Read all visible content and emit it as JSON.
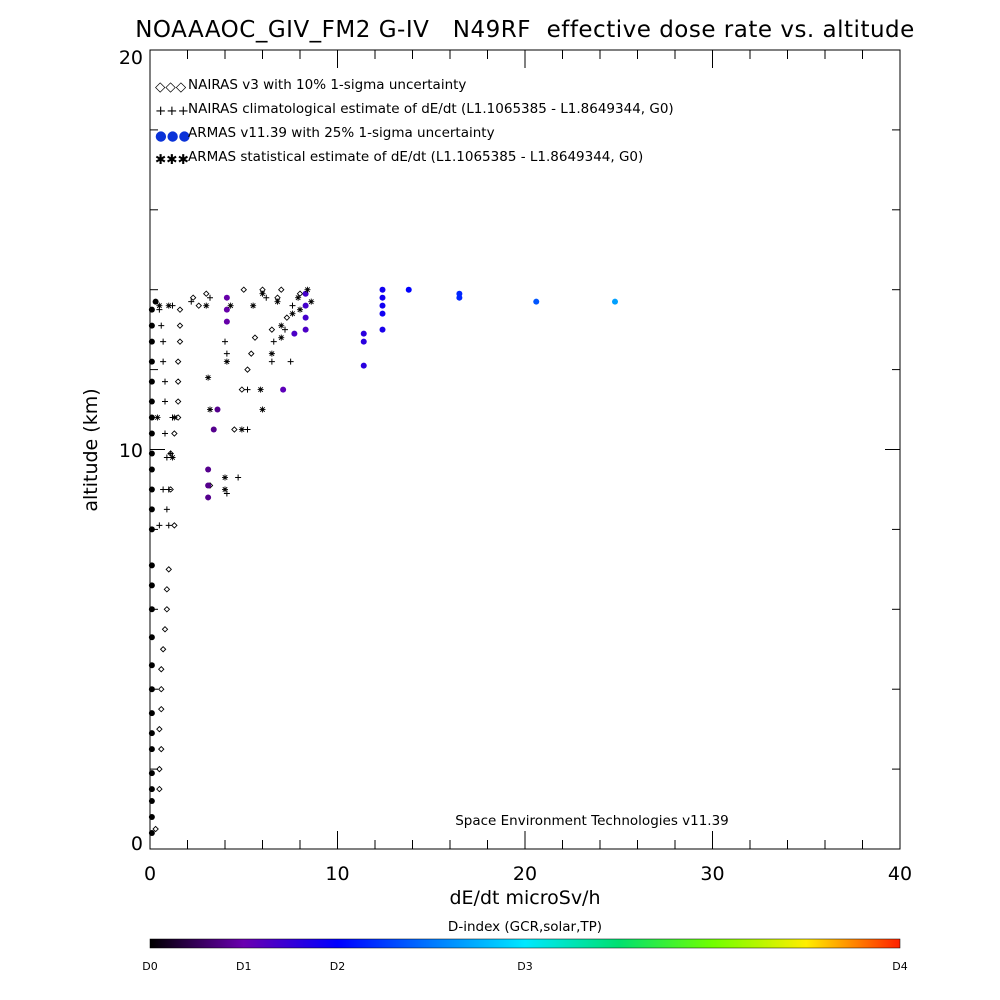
{
  "chart_data": {
    "type": "scatter",
    "title": "NOAAAOC_GIV_FM2 G-IV   N49RF  effective dose rate vs. altitude",
    "xlabel": "dE/dt microSv/h",
    "ylabel": "altitude (km)",
    "xlim": [
      0,
      40
    ],
    "ylim": [
      0,
      20
    ],
    "xticks": [
      "0",
      "10",
      "20",
      "30",
      "40"
    ],
    "yticks": [
      "0",
      "10",
      "20"
    ],
    "credit": "Space Environment Technologies v11.39",
    "legend_position": "top-left",
    "legend": [
      {
        "symbol": "◇◇◇",
        "label": "NAIRAS v3 with 10% 1-sigma uncertainty"
      },
      {
        "symbol": "+++",
        "label": "NAIRAS climatological estimate of dE/dt (L1.1065385 - L1.8649344, G0)"
      },
      {
        "symbol": "●●●",
        "label": "ARMAS v11.39 with 25% 1-sigma uncertainty"
      },
      {
        "symbol": "✱✱✱",
        "label": "ARMAS statistical estimate of dE/dt (L1.1065385 - L1.8649344, G0)"
      }
    ],
    "colorbar": {
      "title": "D-index (GCR,solar,TP)",
      "labels": [
        "D0",
        "D1",
        "D2",
        "D3",
        "D4"
      ],
      "label_positions": [
        0,
        0.125,
        0.25,
        0.5,
        1.0
      ]
    },
    "series": [
      {
        "name": "NAIRAS v3 with 10% 1-sigma uncertainty",
        "marker": "diamond",
        "points": [
          [
            0.3,
            0.5
          ],
          [
            0.5,
            1.5
          ],
          [
            0.5,
            2
          ],
          [
            0.6,
            2.5
          ],
          [
            0.5,
            3
          ],
          [
            0.6,
            3.5
          ],
          [
            0.6,
            4
          ],
          [
            0.6,
            4.5
          ],
          [
            0.7,
            5
          ],
          [
            0.8,
            5.5
          ],
          [
            0.9,
            6
          ],
          [
            0.9,
            6.5
          ],
          [
            1.0,
            7
          ],
          [
            1.3,
            8.1
          ],
          [
            1.1,
            9
          ],
          [
            1.1,
            9.9
          ],
          [
            1.3,
            10.4
          ],
          [
            1.5,
            10.8
          ],
          [
            1.5,
            11.2
          ],
          [
            1.5,
            11.7
          ],
          [
            1.5,
            12.2
          ],
          [
            1.6,
            12.7
          ],
          [
            1.6,
            13.1
          ],
          [
            1.6,
            13.5
          ],
          [
            3.2,
            9.1
          ],
          [
            4.5,
            10.5
          ],
          [
            4.9,
            11.5
          ],
          [
            5.2,
            12
          ],
          [
            5.4,
            12.4
          ],
          [
            5.6,
            12.8
          ],
          [
            6.5,
            13
          ],
          [
            7.3,
            13.3
          ],
          [
            2.3,
            13.8
          ],
          [
            3.0,
            13.9
          ],
          [
            5.0,
            14.0
          ],
          [
            6.0,
            14.0
          ],
          [
            7.0,
            14.0
          ],
          [
            8.0,
            13.9
          ],
          [
            2.6,
            13.6
          ],
          [
            6.8,
            13.8
          ]
        ]
      },
      {
        "name": "NAIRAS climatological estimate of dE/dt (L1.1065385 - L1.8649344, G0)",
        "marker": "plus",
        "points": [
          [
            0.5,
            8.1
          ],
          [
            1.0,
            8.1
          ],
          [
            0.9,
            8.5
          ],
          [
            0.7,
            9.0
          ],
          [
            1.0,
            9.0
          ],
          [
            0.9,
            9.8
          ],
          [
            1.1,
            9.9
          ],
          [
            0.8,
            10.4
          ],
          [
            1.2,
            10.8
          ],
          [
            0.8,
            11.2
          ],
          [
            0.8,
            11.7
          ],
          [
            0.7,
            12.2
          ],
          [
            0.7,
            12.7
          ],
          [
            0.6,
            13.1
          ],
          [
            0.5,
            13.5
          ],
          [
            4.1,
            8.9
          ],
          [
            4.7,
            9.3
          ],
          [
            5.2,
            10.5
          ],
          [
            5.2,
            11.5
          ],
          [
            6.5,
            12.2
          ],
          [
            6.6,
            12.7
          ],
          [
            7.2,
            13.0
          ],
          [
            4.1,
            12.4
          ],
          [
            4.0,
            12.7
          ],
          [
            7.5,
            12.2
          ],
          [
            1.2,
            13.6
          ],
          [
            2.2,
            13.7
          ],
          [
            3.2,
            13.8
          ],
          [
            6.2,
            13.8
          ],
          [
            7.6,
            13.6
          ]
        ]
      },
      {
        "name": "ARMAS v11.39 with 25% 1-sigma uncertainty",
        "marker": "dot",
        "colored_by": "D-index",
        "points": [
          [
            0.1,
            0.4
          ],
          [
            0.1,
            0.8
          ],
          [
            0.1,
            1.2
          ],
          [
            0.1,
            1.5
          ],
          [
            0.1,
            1.9
          ],
          [
            0.1,
            2.5
          ],
          [
            0.1,
            2.9
          ],
          [
            0.1,
            3.4
          ],
          [
            0.1,
            4.0
          ],
          [
            0.1,
            4.6
          ],
          [
            0.1,
            5.3
          ],
          [
            0.1,
            6.0
          ],
          [
            0.1,
            6.6
          ],
          [
            0.1,
            7.1
          ],
          [
            0.1,
            8.0
          ],
          [
            0.1,
            8.5
          ],
          [
            0.1,
            9.0
          ],
          [
            0.1,
            9.5
          ],
          [
            0.1,
            9.9
          ],
          [
            0.1,
            10.4
          ],
          [
            0.1,
            10.8
          ],
          [
            0.1,
            11.2
          ],
          [
            0.1,
            11.7
          ],
          [
            0.1,
            12.2
          ],
          [
            0.1,
            12.7
          ],
          [
            0.1,
            13.1
          ],
          [
            0.1,
            13.5
          ],
          [
            0.3,
            13.7
          ],
          [
            3.1,
            8.8
          ],
          [
            3.1,
            9.1
          ],
          [
            3.1,
            9.5
          ],
          [
            3.4,
            10.5
          ],
          [
            3.6,
            11.0
          ],
          [
            4.1,
            13.2
          ],
          [
            4.1,
            13.5
          ],
          [
            4.1,
            13.8
          ],
          [
            7.1,
            11.5
          ],
          [
            7.7,
            12.9
          ],
          [
            8.3,
            13.0
          ],
          [
            8.3,
            13.3
          ],
          [
            8.3,
            13.6
          ],
          [
            8.3,
            13.9
          ],
          [
            11.4,
            12.1
          ],
          [
            11.4,
            12.7
          ],
          [
            11.4,
            12.9
          ],
          [
            12.4,
            13.0
          ],
          [
            12.4,
            13.4
          ],
          [
            12.4,
            13.6
          ],
          [
            12.4,
            13.8
          ],
          [
            12.4,
            14.0
          ],
          [
            13.8,
            14.0
          ],
          [
            16.5,
            13.8
          ],
          [
            16.5,
            13.9
          ],
          [
            20.6,
            13.7
          ],
          [
            24.8,
            13.7
          ]
        ],
        "dindex": [
          0,
          0,
          0,
          0,
          0,
          0,
          0,
          0,
          0,
          0,
          0,
          0,
          0,
          0,
          0,
          0,
          0,
          0,
          0,
          0,
          0,
          0,
          0,
          0,
          0,
          0,
          0,
          0,
          0.1,
          0.1,
          0.1,
          0.1,
          0.1,
          0.12,
          0.12,
          0.12,
          0.14,
          0.16,
          0.16,
          0.17,
          0.17,
          0.17,
          0.2,
          0.2,
          0.2,
          0.22,
          0.23,
          0.23,
          0.23,
          0.23,
          0.25,
          0.29,
          0.29,
          0.34,
          0.42
        ]
      },
      {
        "name": "ARMAS statistical estimate of dE/dt (L1.1065385 - L1.8649344, G0)",
        "marker": "asterisk",
        "points": [
          [
            3.1,
            11.8
          ],
          [
            3.2,
            11.0
          ],
          [
            4.0,
            9.3
          ],
          [
            4.0,
            9.0
          ],
          [
            4.9,
            10.5
          ],
          [
            5.9,
            11.5
          ],
          [
            6.0,
            11.0
          ],
          [
            4.1,
            12.2
          ],
          [
            6.5,
            12.4
          ],
          [
            7.0,
            12.8
          ],
          [
            7.0,
            13.1
          ],
          [
            7.6,
            13.4
          ],
          [
            0.4,
            10.8
          ],
          [
            1.2,
            9.8
          ],
          [
            1.3,
            10.8
          ],
          [
            0.5,
            13.6
          ],
          [
            1.0,
            13.6
          ],
          [
            3.0,
            13.6
          ],
          [
            4.3,
            13.6
          ],
          [
            5.5,
            13.6
          ],
          [
            6.8,
            13.7
          ],
          [
            7.9,
            13.8
          ],
          [
            8.4,
            14.0
          ],
          [
            8.0,
            13.5
          ],
          [
            6.0,
            13.9
          ],
          [
            8.6,
            13.7
          ]
        ]
      }
    ]
  }
}
